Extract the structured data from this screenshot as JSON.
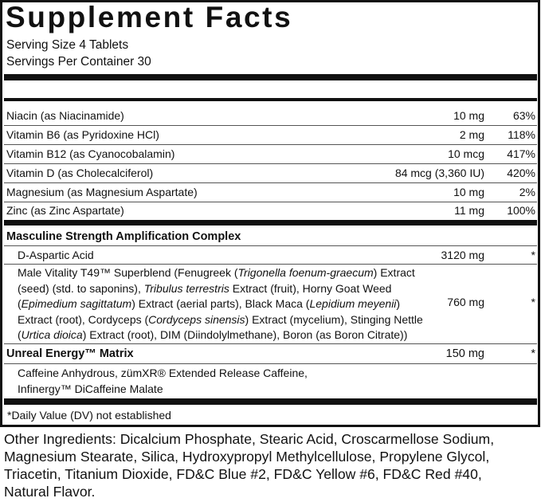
{
  "title": "Supplement Facts",
  "serving_size": "Serving Size 4 Tablets",
  "servings_per_container": "Servings Per Container 30",
  "nutrients": [
    {
      "name": "Niacin (as Niacinamide)",
      "amount": "10 mg",
      "dv": "63%"
    },
    {
      "name": "Vitamin B6 (as Pyridoxine HCl)",
      "amount": "2 mg",
      "dv": "118%"
    },
    {
      "name": "Vitamin B12 (as Cyanocobalamin)",
      "amount": "10 mcg",
      "dv": "417%"
    },
    {
      "name": "Vitamin D (as Cholecalciferol)",
      "amount": "84 mcg (3,360 IU)",
      "dv": "420%"
    },
    {
      "name": "Magnesium (as Magnesium Aspartate)",
      "amount": "10 mg",
      "dv": "2%"
    },
    {
      "name": "Zinc (as Zinc Aspartate)",
      "amount": "11 mg",
      "dv": "100%"
    }
  ],
  "complex": {
    "name": "Masculine Strength Amplification Complex",
    "items": [
      {
        "name": "D-Aspartic Acid",
        "amount": "3120 mg",
        "dv": "*"
      }
    ],
    "superblend": {
      "amount": "760 mg",
      "dv": "*",
      "lines": [
        [
          {
            "t": "Male Vitality T49™ Superblend (Fenugreek ("
          },
          {
            "t": "Trigonella foenum-graecum",
            "i": true
          },
          {
            "t": ") Extract"
          }
        ],
        [
          {
            "t": "(seed) (std. to saponins), "
          },
          {
            "t": "Tribulus terrestris",
            "i": true
          },
          {
            "t": " Extract (fruit), Horny Goat Weed"
          }
        ],
        [
          {
            "t": "("
          },
          {
            "t": "Epimedium sagittatum",
            "i": true
          },
          {
            "t": ") Extract (aerial parts), Black Maca ("
          },
          {
            "t": "Lepidium meyenii",
            "i": true
          },
          {
            "t": ")"
          }
        ],
        [
          {
            "t": "Extract (root), Cordyceps ("
          },
          {
            "t": "Cordyceps sinensis",
            "i": true
          },
          {
            "t": ") Extract (mycelium), Stinging Nettle"
          }
        ],
        [
          {
            "t": "("
          },
          {
            "t": "Urtica dioica",
            "i": true
          },
          {
            "t": ") Extract (root), DIM (Diindolylmethane), Boron (as Boron Citrate))"
          }
        ]
      ]
    }
  },
  "matrix": {
    "name": "Unreal Energy™ Matrix",
    "amount": "150 mg",
    "dv": "*",
    "line1": "Caffeine Anhydrous, zümXR® Extended Release Caffeine,",
    "line2": "Infinergy™ DiCaffeine Malate"
  },
  "footnote": "*Daily Value (DV) not established",
  "other_ingredients": "Other Ingredients: Dicalcium Phosphate, Stearic Acid, Croscarmellose Sodium, Magnesium Stearate, Silica, Hydroxypropyl Methylcellulose, Propylene Glycol, Triacetin, Titanium Dioxide, FD&C Blue #2, FD&C Yellow #6, FD&C Red #40, Natural Flavor."
}
